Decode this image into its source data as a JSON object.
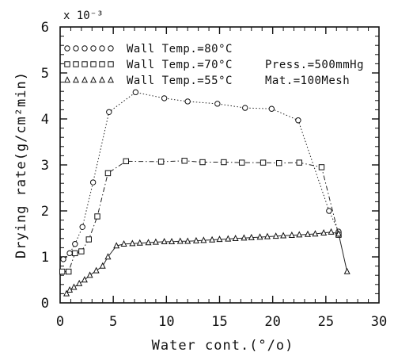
{
  "chart_data": {
    "type": "line",
    "xlabel": "Water cont.(°/o)",
    "ylabel": "Drying rate(g/cm²min)",
    "y_exponent": "x 10⁻³",
    "xlim": [
      0,
      30
    ],
    "ylim": [
      0,
      6
    ],
    "x_ticks": [
      "0",
      "5",
      "10",
      "15",
      "20",
      "25",
      "30"
    ],
    "y_ticks": [
      "0",
      "1",
      "2",
      "3",
      "4",
      "5",
      "6"
    ],
    "grid": false,
    "legend_position": "top-left",
    "conditions": [
      "Press.=500mmHg",
      "Mat.=100Mesh"
    ],
    "series": [
      {
        "name": "Wall Temp.=80°C",
        "marker": "circle",
        "line_style": "dotted",
        "x": [
          0.3,
          0.9,
          1.4,
          2.1,
          3.1,
          4.6,
          7.1,
          9.8,
          12.0,
          14.8,
          17.4,
          19.9,
          22.4,
          25.3,
          26.2
        ],
        "y": [
          0.95,
          1.08,
          1.28,
          1.65,
          2.62,
          4.15,
          4.58,
          4.45,
          4.38,
          4.33,
          4.24,
          4.22,
          3.97,
          2.0,
          1.55
        ]
      },
      {
        "name": "Wall Temp.=70°C",
        "marker": "square",
        "line_style": "dash-dot",
        "x": [
          0.2,
          0.8,
          1.4,
          2.0,
          2.7,
          3.5,
          4.5,
          6.2,
          9.5,
          11.7,
          13.4,
          15.4,
          17.1,
          19.1,
          20.6,
          22.5,
          24.6,
          26.2
        ],
        "y": [
          0.68,
          0.68,
          1.08,
          1.12,
          1.38,
          1.88,
          2.82,
          3.08,
          3.07,
          3.09,
          3.06,
          3.06,
          3.05,
          3.05,
          3.04,
          3.05,
          2.95,
          1.48
        ]
      },
      {
        "name": "Wall Temp.=55°C",
        "marker": "triangle",
        "line_style": "solid",
        "x": [
          0.6,
          0.9,
          1.3,
          1.8,
          2.3,
          2.8,
          3.4,
          4.0,
          4.5,
          5.3,
          6.0,
          6.8,
          7.5,
          8.3,
          9.0,
          9.8,
          10.5,
          11.3,
          12.0,
          12.8,
          13.5,
          14.3,
          15.0,
          15.8,
          16.5,
          17.3,
          18.0,
          18.8,
          19.5,
          20.3,
          21.0,
          21.8,
          22.5,
          23.3,
          24.0,
          24.8,
          25.5,
          26.2,
          27.0
        ],
        "y": [
          0.2,
          0.28,
          0.34,
          0.42,
          0.5,
          0.6,
          0.7,
          0.8,
          1.0,
          1.24,
          1.28,
          1.29,
          1.3,
          1.31,
          1.32,
          1.33,
          1.33,
          1.34,
          1.34,
          1.35,
          1.36,
          1.37,
          1.38,
          1.39,
          1.4,
          1.41,
          1.42,
          1.43,
          1.44,
          1.45,
          1.46,
          1.47,
          1.48,
          1.49,
          1.5,
          1.52,
          1.54,
          1.5,
          0.68
        ]
      }
    ]
  }
}
